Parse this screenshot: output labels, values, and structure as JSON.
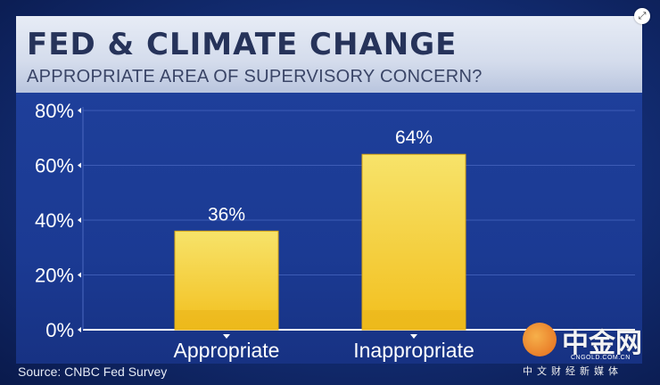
{
  "header": {
    "title": "FED & CLIMATE CHANGE",
    "subtitle": "APPROPRIATE AREA OF SUPERVISORY CONCERN?"
  },
  "source": "Source: CNBC Fed Survey",
  "watermark": {
    "name": "中金网",
    "domain": "CNGOLD.COM.CN",
    "tagline": "中文财经新媒体"
  },
  "colors": {
    "bar_top": "#f7e36a",
    "bar_bottom": "#f2bf1d",
    "header_text": "#26335a",
    "panel_bg": "#1e3f9a"
  },
  "chart_data": {
    "type": "bar",
    "title": "FED & CLIMATE CHANGE",
    "subtitle": "APPROPRIATE AREA OF SUPERVISORY CONCERN?",
    "categories": [
      "Appropriate",
      "Inappropriate"
    ],
    "values": [
      36,
      64
    ],
    "data_labels": [
      "36%",
      "64%"
    ],
    "ylim": [
      0,
      80
    ],
    "yticks": [
      0,
      20,
      40,
      60,
      80
    ],
    "ytick_labels": [
      "0%",
      "20%",
      "40%",
      "60%",
      "80%"
    ],
    "xlabel": "",
    "ylabel": "",
    "grid": true,
    "legend": "none"
  }
}
